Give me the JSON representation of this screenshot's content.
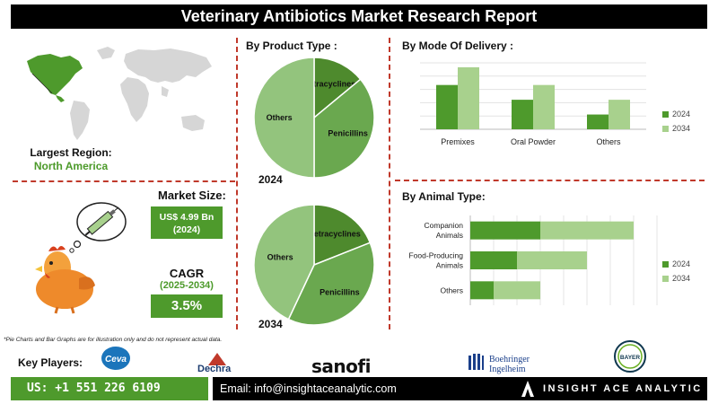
{
  "title": "Veterinary Antibiotics Market Research Report",
  "product_type": {
    "heading": "By Product Type :",
    "year_2024": "2024",
    "year_2034": "2034"
  },
  "mode_of_delivery": {
    "heading": "By Mode Of Delivery :"
  },
  "animal_type": {
    "heading": "By Animal Type:"
  },
  "region": {
    "label": "Largest Region:",
    "value": "North America"
  },
  "market_size": {
    "label": "Market Size:",
    "value": "US$ 4.99 Bn",
    "year": "(2024)"
  },
  "cagr": {
    "label": "CAGR",
    "period": "(2025-2034)",
    "value": "3.5%"
  },
  "disclaimer": "*Pie Charts and Bar Graphs are for illustration only and do not represent actual data.",
  "key_players": {
    "label": "Key Players:",
    "names": [
      "Ceva",
      "Dechra",
      "sanofi",
      "Boehringer",
      "Ingelheim",
      "BAYER"
    ]
  },
  "contact": {
    "phone": "US: +1 551 226 6109",
    "email": "Email: info@insightaceanalytic.com",
    "brand": "INSIGHT ACE ANALYTIC"
  },
  "colors": {
    "dark_green": "#4e9a2c",
    "light_green": "#a8d18d",
    "mid_green": "#6aa84f",
    "pie_light": "#93c47d",
    "accent_red": "#c0392b"
  },
  "chart_data": [
    {
      "type": "pie",
      "year": "2024",
      "labels": [
        "Tetracyclines",
        "Penicillins",
        "Others"
      ],
      "values": [
        14,
        36,
        50
      ]
    },
    {
      "type": "pie",
      "year": "2034",
      "labels": [
        "Tetracyclines",
        "Penicillins",
        "Others"
      ],
      "values": [
        19,
        38,
        43
      ]
    },
    {
      "type": "bar",
      "categories": [
        "Premixes",
        "Oral Powder",
        "Others"
      ],
      "series": [
        {
          "name": "2024",
          "values": [
            3.0,
            2.0,
            1.0
          ]
        },
        {
          "name": "2034",
          "values": [
            4.2,
            3.0,
            2.0
          ]
        }
      ],
      "legend": "right",
      "ylim": [
        0,
        4.5
      ]
    },
    {
      "type": "bar",
      "orientation": "horizontal-stacked",
      "categories": [
        "Companion Animals",
        "Food-Producing Animals",
        "Others"
      ],
      "category_lines": [
        [
          "Companion",
          "Animals"
        ],
        [
          "Food-Producing",
          "Animals"
        ],
        [
          "Others"
        ]
      ],
      "series": [
        {
          "name": "2024",
          "values": [
            3.0,
            2.0,
            1.0
          ]
        },
        {
          "name": "2034",
          "values": [
            4.0,
            3.0,
            2.0
          ]
        }
      ],
      "legend": "right",
      "xlim": [
        0,
        8
      ]
    }
  ]
}
